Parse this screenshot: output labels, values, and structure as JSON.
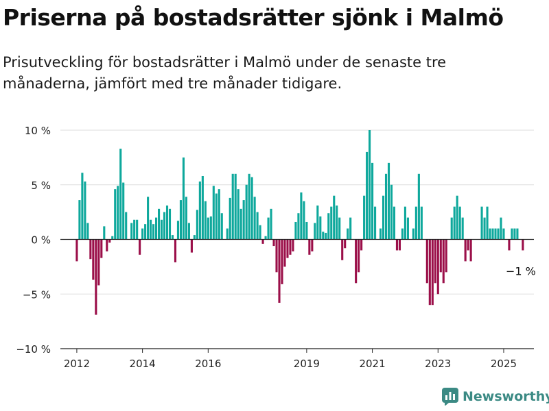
{
  "header": {
    "title": "Priserna på bostadsrätter sjönk i Malmö",
    "subtitle": "Prisutveckling för bostadsrätter i Malmö under de senaste tre månaderna, jämfört med tre månader tidigare."
  },
  "brand": {
    "name": "Newsworthy",
    "color": "#3b8a84"
  },
  "colors": {
    "positive": "#0ea89c",
    "negative": "#9b0f49",
    "grid": "#dddddd",
    "axis": "#222222"
  },
  "chart_data": {
    "type": "bar",
    "title": "Priserna på bostadsrätter sjönk i Malmö",
    "xlabel": "",
    "ylabel": "",
    "ylim": [
      -10,
      10
    ],
    "xlim": [
      2011.5,
      2025.92
    ],
    "yticks": [
      10,
      5,
      0,
      -5,
      -10
    ],
    "ytick_labels": [
      "10 %",
      "5 %",
      "0 %",
      "−5 %",
      "−10 %"
    ],
    "xticks": [
      2012,
      2014,
      2016,
      2019,
      2021,
      2023,
      2025
    ],
    "xtick_labels": [
      "2012",
      "2014",
      "2016",
      "2019",
      "2021",
      "2023",
      "2025"
    ],
    "start": "2012-01",
    "interval": "month",
    "grid": true,
    "annotation": {
      "text": "−1 %",
      "date": "2025-07"
    },
    "values": [
      -2,
      3.6,
      6.1,
      5.3,
      1.5,
      -1.8,
      -3.7,
      -6.9,
      -4.2,
      -1.7,
      1.2,
      -1.1,
      -0.3,
      0.3,
      4.6,
      4.9,
      8.3,
      5.2,
      2.5,
      0,
      1.5,
      1.8,
      1.8,
      -1.4,
      1.0,
      1.4,
      3.9,
      1.8,
      1.4,
      2.0,
      2.8,
      1.8,
      2.5,
      3.1,
      2.8,
      0.4,
      -2.1,
      1.7,
      3.6,
      7.5,
      3.9,
      1.5,
      -1.2,
      0.4,
      2.7,
      5.3,
      5.8,
      3.5,
      2.0,
      2.1,
      4.9,
      4.2,
      4.6,
      2.4,
      0,
      1.0,
      3.8,
      6.0,
      6.0,
      4.6,
      2.8,
      3.6,
      5.0,
      6.0,
      5.7,
      3.9,
      2.5,
      1.3,
      -0.4,
      0.3,
      2.0,
      2.8,
      -0.6,
      -3.0,
      -5.8,
      -4.1,
      -2.5,
      -1.7,
      -1.4,
      -1.1,
      1.6,
      2.4,
      4.3,
      3.5,
      1.6,
      -1.4,
      -1.1,
      1.5,
      3.1,
      2.1,
      0.7,
      0.6,
      2.4,
      3.0,
      4.0,
      3.1,
      2.0,
      -1.9,
      -0.8,
      1.0,
      2.0,
      0,
      -4.0,
      -3.0,
      -1.0,
      4.0,
      8.0,
      10.0,
      7.0,
      3.0,
      0,
      1.0,
      4.0,
      6.0,
      7.0,
      5.0,
      3.0,
      -1.0,
      -1.0,
      1.0,
      3.0,
      2.0,
      0,
      1.0,
      3.0,
      6.0,
      3.0,
      0,
      -4.0,
      -6.0,
      -6.0,
      -4.0,
      -5.0,
      -3.0,
      -4.0,
      -3.0,
      0,
      2.0,
      3.0,
      4.0,
      3.0,
      2.0,
      -2.0,
      -1.0,
      -2.0,
      0,
      0,
      0,
      3.0,
      2.0,
      3.0,
      1.0,
      1.0,
      1.0,
      1.0,
      2.0,
      1.0,
      0,
      -1.0,
      1.0,
      1.0,
      1.0,
      0,
      -1.0
    ]
  }
}
